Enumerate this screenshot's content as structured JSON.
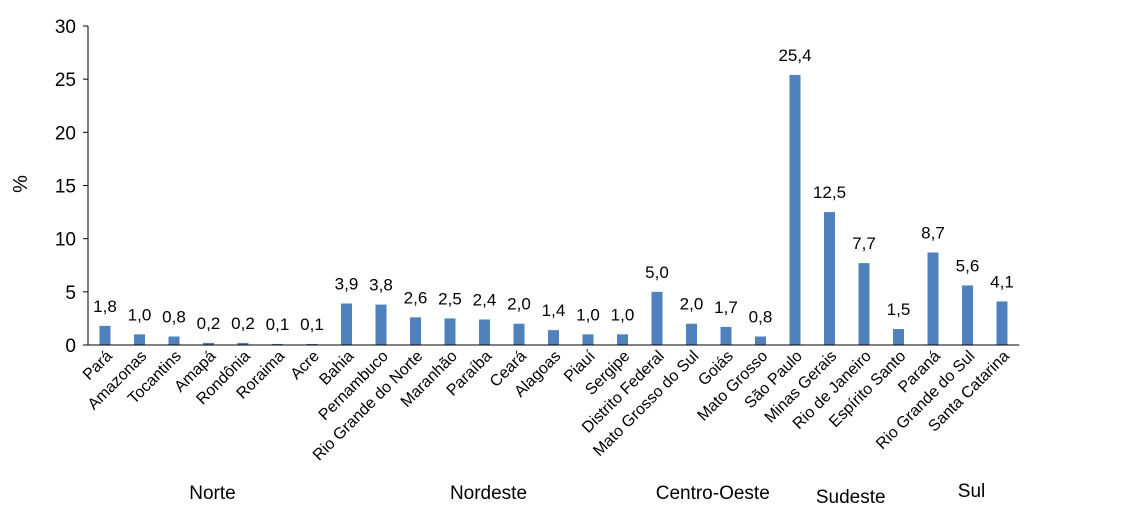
{
  "chart_data": {
    "type": "bar",
    "title": "",
    "xlabel": "",
    "ylabel": "%",
    "ylim": [
      0,
      30
    ],
    "yticks": [
      "0",
      "5",
      "10",
      "15",
      "20",
      "25",
      "30"
    ],
    "grid": false,
    "legend": "none",
    "bar_color": "#4f81bd",
    "categories": [
      "Pará",
      "Amazonas",
      "Tocantins",
      "Amapá",
      "Rondônia",
      "Roraima",
      "Acre",
      "Bahia",
      "Pernambuco",
      "Rio Grande do Norte",
      "Maranhão",
      "Paraíba",
      "Ceará",
      "Alagoas",
      "Piauí",
      "Sergipe",
      "Distrito Federal",
      "Mato Grosso do Sul",
      "Goiás",
      "Mato Grosso",
      "São Paulo",
      "Minas Gerais",
      "Rio de Janeiro",
      "Espírito Santo",
      "Paraná",
      "Rio Grande do Sul",
      "Santa Catarina"
    ],
    "values": [
      1.8,
      1.0,
      0.8,
      0.2,
      0.2,
      0.1,
      0.1,
      3.9,
      3.8,
      2.6,
      2.5,
      2.4,
      2.0,
      1.4,
      1.0,
      1.0,
      5.0,
      2.0,
      1.7,
      0.8,
      25.4,
      12.5,
      7.7,
      1.5,
      8.7,
      5.6,
      4.1
    ],
    "value_labels": [
      "1,8",
      "1,0",
      "0,8",
      "0,2",
      "0,2",
      "0,1",
      "0,1",
      "3,9",
      "3,8",
      "2,6",
      "2,5",
      "2,4",
      "2,0",
      "1,4",
      "1,0",
      "1,0",
      "5,0",
      "2,0",
      "1,7",
      "0,8",
      "25,4",
      "12,5",
      "7,7",
      "1,5",
      "8,7",
      "5,6",
      "4,1"
    ],
    "regions": [
      {
        "name": "Norte",
        "start": 0,
        "end": 6
      },
      {
        "name": "Nordeste",
        "start": 7,
        "end": 15
      },
      {
        "name": "Centro-Oeste",
        "start": 16,
        "end": 19
      },
      {
        "name": "Sudeste",
        "start": 20,
        "end": 23
      },
      {
        "name": "Sul",
        "start": 24,
        "end": 26
      }
    ]
  }
}
